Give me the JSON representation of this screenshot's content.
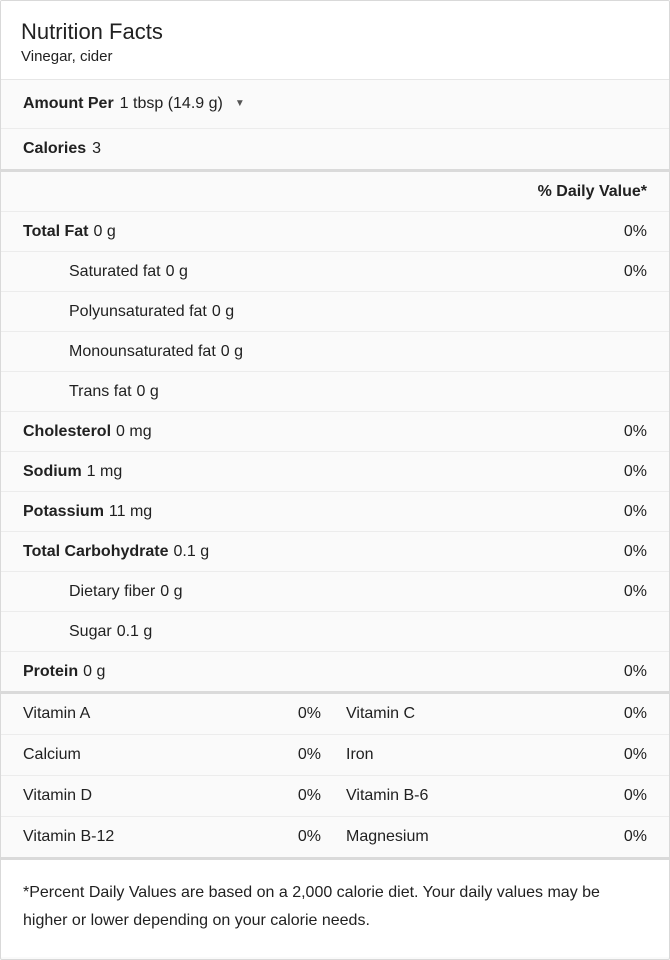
{
  "panel": {
    "title": "Nutrition Facts",
    "subtitle": "Vinegar, cider",
    "serving": {
      "label": "Amount Per",
      "value": "1 tbsp (14.9 g)",
      "dropdown_icon": "chevron-down-icon",
      "caret_glyph": "▼"
    },
    "calories": {
      "label": "Calories",
      "value": "3"
    },
    "daily_value_header": "% Daily Value*",
    "rows": [
      {
        "label": "Total Fat",
        "amount": "0 g",
        "dv": "0%",
        "bold": true,
        "indent": 0
      },
      {
        "label": "Saturated fat",
        "amount": "0 g",
        "dv": "0%",
        "bold": false,
        "indent": 1
      },
      {
        "label": "Polyunsaturated fat",
        "amount": "0 g",
        "dv": "",
        "bold": false,
        "indent": 1
      },
      {
        "label": "Monounsaturated fat",
        "amount": "0 g",
        "dv": "",
        "bold": false,
        "indent": 1
      },
      {
        "label": "Trans fat",
        "amount": "0 g",
        "dv": "",
        "bold": false,
        "indent": 1
      },
      {
        "label": "Cholesterol",
        "amount": "0 mg",
        "dv": "0%",
        "bold": true,
        "indent": 0
      },
      {
        "label": "Sodium",
        "amount": "1 mg",
        "dv": "0%",
        "bold": true,
        "indent": 0
      },
      {
        "label": "Potassium",
        "amount": "11 mg",
        "dv": "0%",
        "bold": true,
        "indent": 0
      },
      {
        "label": "Total Carbohydrate",
        "amount": "0.1 g",
        "dv": "0%",
        "bold": true,
        "indent": 0
      },
      {
        "label": "Dietary fiber",
        "amount": "0 g",
        "dv": "0%",
        "bold": false,
        "indent": 1
      },
      {
        "label": "Sugar",
        "amount": "0.1 g",
        "dv": "",
        "bold": false,
        "indent": 1
      },
      {
        "label": "Protein",
        "amount": "0 g",
        "dv": "0%",
        "bold": true,
        "indent": 0
      }
    ],
    "micronutrients": [
      {
        "left": {
          "label": "Vitamin A",
          "dv": "0%"
        },
        "right": {
          "label": "Vitamin C",
          "dv": "0%"
        }
      },
      {
        "left": {
          "label": "Calcium",
          "dv": "0%"
        },
        "right": {
          "label": "Iron",
          "dv": "0%"
        }
      },
      {
        "left": {
          "label": "Vitamin D",
          "dv": "0%"
        },
        "right": {
          "label": "Vitamin B-6",
          "dv": "0%"
        }
      },
      {
        "left": {
          "label": "Vitamin B-12",
          "dv": "0%"
        },
        "right": {
          "label": "Magnesium",
          "dv": "0%"
        }
      }
    ],
    "footnote": "*Percent Daily Values are based on a 2,000 calorie diet. Your daily values may be higher or lower depending on your calorie needs."
  },
  "colors": {
    "text": "#212121",
    "panel_border": "#d9d9d9",
    "thin_divider": "#ececec",
    "heavy_divider": "#dadada",
    "row_background": "#fafafa",
    "header_background": "#ffffff"
  }
}
